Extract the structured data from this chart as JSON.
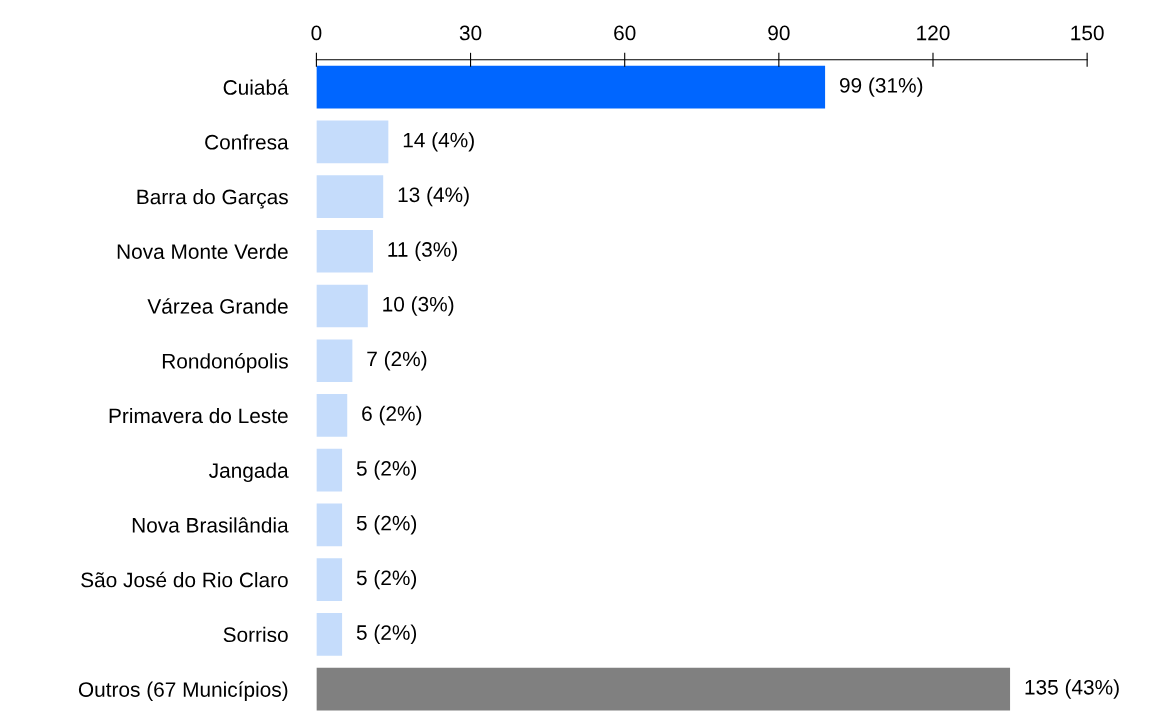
{
  "chart_data": {
    "type": "bar",
    "orientation": "horizontal",
    "categories": [
      "Cuiabá",
      "Confresa",
      "Barra do Garças",
      "Nova Monte Verde",
      "Várzea Grande",
      "Rondonópolis",
      "Primavera do Leste",
      "Jangada",
      "Nova Brasilândia",
      "São José do Rio Claro",
      "Sorriso",
      "Outros (67 Municípios)"
    ],
    "values": [
      99,
      14,
      13,
      11,
      10,
      7,
      6,
      5,
      5,
      5,
      5,
      135
    ],
    "colors": [
      "#0066ff",
      "#c5dcfb",
      "#c5dcfb",
      "#c5dcfb",
      "#c5dcfb",
      "#c5dcfb",
      "#c5dcfb",
      "#c5dcfb",
      "#c5dcfb",
      "#c5dcfb",
      "#c5dcfb",
      "#808080"
    ],
    "value_labels": [
      "99 (31%)",
      "14 (4%)",
      "13 (4%)",
      "11 (3%)",
      "10 (3%)",
      "7 (2%)",
      "6 (2%)",
      "5 (2%)",
      "5 (2%)",
      "5 (2%)",
      "5 (2%)",
      "135 (43%)"
    ],
    "xlim": [
      0,
      150
    ],
    "xticks": [
      0,
      30,
      60,
      90,
      120,
      150
    ]
  }
}
